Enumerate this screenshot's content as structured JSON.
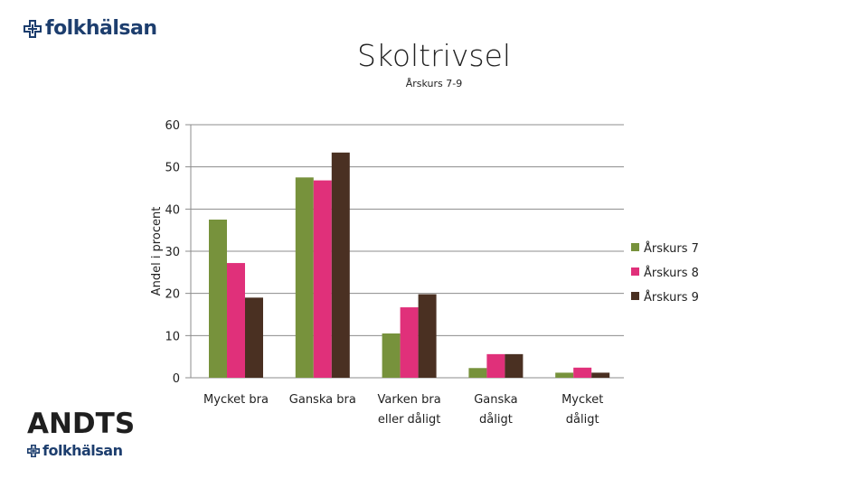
{
  "brand": {
    "top_logo": {
      "text": "folkhälsan",
      "icon": "folkhalsan-cross-icon",
      "color": "#1d3e6e"
    },
    "bottom_logo": {
      "title": "ANDTS",
      "text": "folkhälsan",
      "icon": "folkhalsan-cross-icon"
    }
  },
  "chart_data": {
    "type": "bar",
    "title": "Skoltrivsel",
    "subtitle": "Årskurs 7-9",
    "ylabel": "Andel i procent",
    "xlabel": "",
    "ylim": [
      0,
      60
    ],
    "yticks": [
      0,
      10,
      20,
      30,
      40,
      50,
      60
    ],
    "grid": true,
    "legend_position": "right",
    "categories": [
      [
        "Mycket bra"
      ],
      [
        "Ganska bra"
      ],
      [
        "Varken bra",
        "eller dåligt"
      ],
      [
        "Ganska",
        "dåligt"
      ],
      [
        "Mycket",
        "dåligt"
      ]
    ],
    "series": [
      {
        "name": "Årskurs 7",
        "color": "#77923c",
        "values": [
          37.5,
          47.5,
          10.5,
          2.3,
          1.2
        ]
      },
      {
        "name": "Årskurs 8",
        "color": "#e0307a",
        "values": [
          27.2,
          46.8,
          16.7,
          5.6,
          2.4
        ]
      },
      {
        "name": "Årskurs 9",
        "color": "#4a3022",
        "values": [
          19.0,
          53.4,
          19.8,
          5.6,
          1.2
        ]
      }
    ]
  }
}
